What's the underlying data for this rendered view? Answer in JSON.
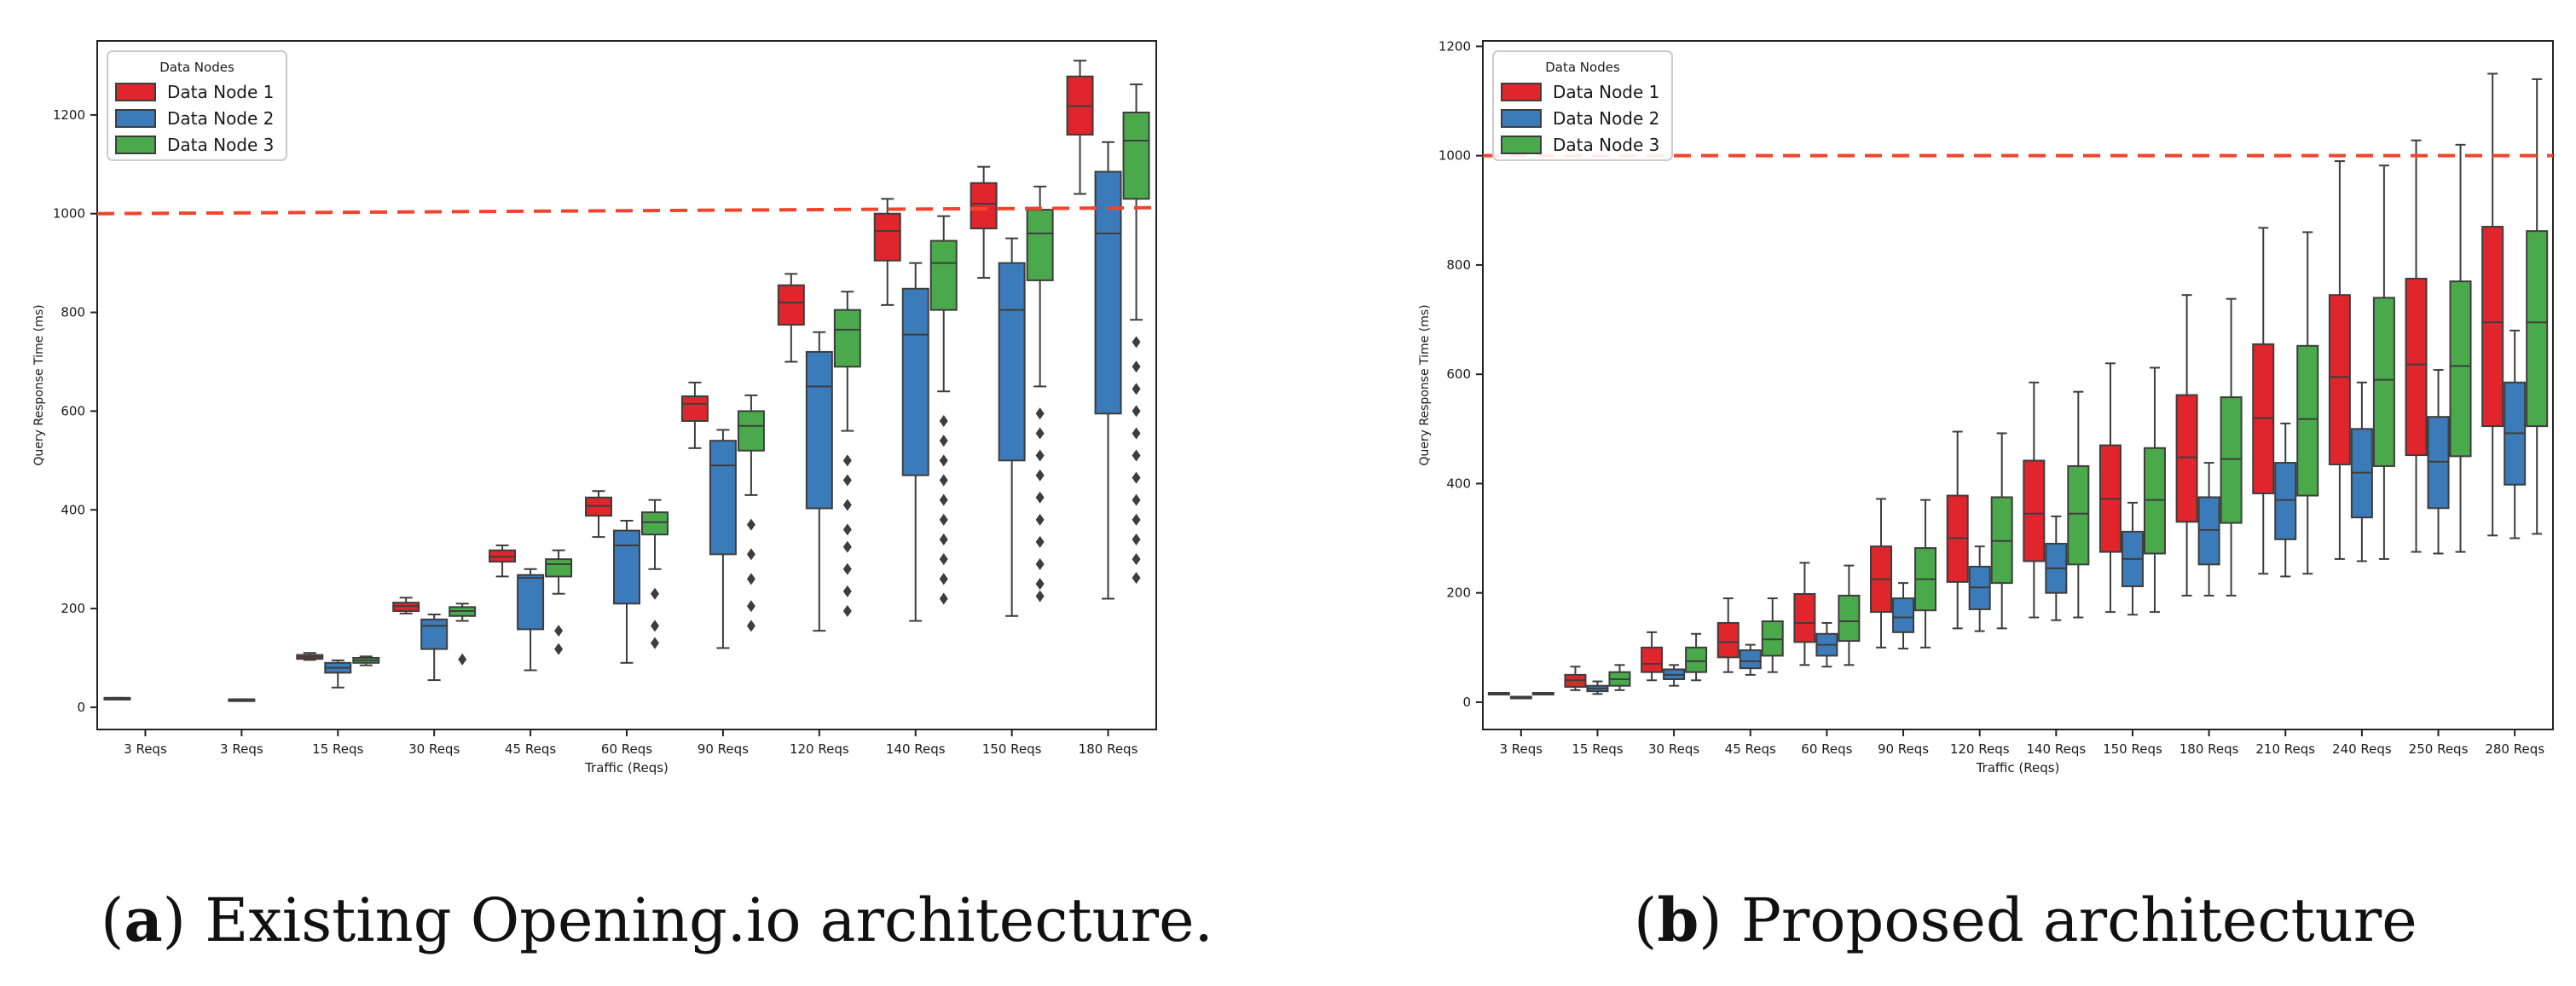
{
  "chart_data": [
    {
      "id": "a",
      "type": "box",
      "xlabel": "Traffic (Reqs)",
      "ylabel": "Query Response Time (ms)",
      "ylim": [
        -45,
        1350
      ],
      "yticks": [
        0,
        200,
        400,
        600,
        800,
        1000,
        1200
      ],
      "threshold": 1000,
      "threshold_end": 1012,
      "legend": {
        "title": "Data Nodes",
        "position": "top-left"
      },
      "series": [
        {
          "name": "Data Node 1",
          "color": "#e0262c"
        },
        {
          "name": "Data Node 2",
          "color": "#3c7bb9"
        },
        {
          "name": "Data Node 3",
          "color": "#4aaa4b"
        }
      ],
      "categories": [
        "3 Reqs",
        "3 Reqs",
        "15 Reqs",
        "30 Reqs",
        "45 Reqs",
        "60 Reqs",
        "90 Reqs",
        "120 Reqs",
        "140 Reqs",
        "150 Reqs",
        "180 Reqs"
      ],
      "boxes": [
        [
          [
            19,
            19,
            19,
            19,
            19,
            []
          ],
          null,
          null
        ],
        [
          null,
          [
            16,
            16,
            16,
            16,
            16,
            []
          ],
          null
        ],
        [
          [
            96,
            98,
            102,
            106,
            110,
            []
          ],
          [
            40,
            70,
            80,
            90,
            95,
            []
          ],
          [
            85,
            90,
            95,
            100,
            103,
            []
          ]
        ],
        [
          [
            190,
            195,
            205,
            212,
            222,
            []
          ],
          [
            55,
            118,
            165,
            178,
            188,
            []
          ],
          [
            175,
            185,
            195,
            203,
            210,
            [
              97
            ]
          ]
        ],
        [
          [
            265,
            295,
            305,
            318,
            328,
            []
          ],
          [
            75,
            158,
            262,
            268,
            280,
            []
          ],
          [
            230,
            265,
            290,
            300,
            318,
            [
              155,
              118
            ]
          ]
        ],
        [
          [
            345,
            388,
            408,
            425,
            438,
            []
          ],
          [
            90,
            210,
            328,
            358,
            378,
            []
          ],
          [
            280,
            350,
            375,
            395,
            420,
            [
              230,
              165,
              130
            ]
          ]
        ],
        [
          [
            525,
            580,
            615,
            630,
            658,
            []
          ],
          [
            120,
            310,
            490,
            540,
            562,
            []
          ],
          [
            430,
            520,
            570,
            600,
            632,
            [
              370,
              310,
              260,
              205,
              165
            ]
          ]
        ],
        [
          [
            700,
            775,
            820,
            855,
            878,
            []
          ],
          [
            155,
            403,
            650,
            720,
            760,
            []
          ],
          [
            560,
            690,
            765,
            805,
            842,
            [
              500,
              460,
              410,
              360,
              325,
              280,
              235,
              195
            ]
          ]
        ],
        [
          [
            815,
            905,
            965,
            1000,
            1030,
            []
          ],
          [
            175,
            470,
            755,
            848,
            900,
            []
          ],
          [
            640,
            805,
            900,
            945,
            995,
            [
              580,
              540,
              500,
              460,
              420,
              380,
              340,
              300,
              260,
              220
            ]
          ]
        ],
        [
          [
            870,
            970,
            1020,
            1062,
            1095,
            []
          ],
          [
            185,
            500,
            805,
            900,
            950,
            []
          ],
          [
            650,
            865,
            960,
            1008,
            1055,
            [
              595,
              555,
              510,
              470,
              425,
              380,
              335,
              290,
              250,
              225
            ]
          ]
        ],
        [
          [
            1040,
            1160,
            1218,
            1278,
            1310,
            []
          ],
          [
            220,
            595,
            960,
            1085,
            1145,
            []
          ],
          [
            785,
            1030,
            1148,
            1205,
            1262,
            [
              740,
              690,
              645,
              600,
              555,
              510,
              465,
              420,
              380,
              340,
              300,
              262
            ]
          ]
        ]
      ]
    },
    {
      "id": "b",
      "type": "box",
      "xlabel": "Traffic (Reqs)",
      "ylabel": "Query Response Time (ms)",
      "ylim": [
        -50,
        1210
      ],
      "yticks": [
        0,
        200,
        400,
        600,
        800,
        1000,
        1200
      ],
      "threshold": 1000,
      "threshold_end": 1000,
      "legend": {
        "title": "Data Nodes",
        "position": "top-left"
      },
      "series": [
        {
          "name": "Data Node 1",
          "color": "#e0262c"
        },
        {
          "name": "Data Node 2",
          "color": "#3c7bb9"
        },
        {
          "name": "Data Node 3",
          "color": "#4aaa4b"
        }
      ],
      "categories": [
        "3 Reqs",
        "15 Reqs",
        "30 Reqs",
        "45 Reqs",
        "60 Reqs",
        "90 Reqs",
        "120 Reqs",
        "140 Reqs",
        "150 Reqs",
        "180 Reqs",
        "210 Reqs",
        "240 Reqs",
        "250 Reqs",
        "280 Reqs"
      ],
      "boxes": [
        [
          [
            17,
            17,
            17,
            17,
            17,
            []
          ],
          [
            10,
            10,
            10,
            10,
            10,
            []
          ],
          [
            17,
            17,
            17,
            17,
            17,
            []
          ]
        ],
        [
          [
            22,
            28,
            40,
            50,
            65,
            []
          ],
          [
            15,
            20,
            25,
            30,
            38,
            []
          ],
          [
            22,
            30,
            42,
            55,
            68,
            []
          ]
        ],
        [
          [
            40,
            55,
            70,
            100,
            128,
            []
          ],
          [
            30,
            42,
            50,
            60,
            68,
            []
          ],
          [
            40,
            55,
            75,
            100,
            125,
            []
          ]
        ],
        [
          [
            55,
            82,
            110,
            145,
            190,
            []
          ],
          [
            50,
            62,
            75,
            95,
            105,
            []
          ],
          [
            55,
            85,
            115,
            148,
            190,
            []
          ]
        ],
        [
          [
            68,
            110,
            145,
            198,
            255,
            []
          ],
          [
            65,
            85,
            105,
            125,
            145,
            []
          ],
          [
            68,
            112,
            148,
            195,
            250,
            []
          ]
        ],
        [
          [
            100,
            165,
            225,
            285,
            372,
            []
          ],
          [
            98,
            128,
            155,
            190,
            218,
            []
          ],
          [
            100,
            168,
            225,
            282,
            370,
            []
          ]
        ],
        [
          [
            135,
            220,
            300,
            378,
            495,
            []
          ],
          [
            130,
            170,
            210,
            248,
            285,
            []
          ],
          [
            135,
            218,
            295,
            375,
            492,
            []
          ]
        ],
        [
          [
            155,
            258,
            345,
            442,
            585,
            []
          ],
          [
            150,
            200,
            245,
            290,
            340,
            []
          ],
          [
            155,
            252,
            345,
            432,
            568,
            []
          ]
        ],
        [
          [
            165,
            275,
            372,
            470,
            620,
            []
          ],
          [
            160,
            212,
            262,
            312,
            365,
            []
          ],
          [
            165,
            272,
            370,
            465,
            612,
            []
          ]
        ],
        [
          [
            195,
            330,
            448,
            562,
            745,
            []
          ],
          [
            195,
            252,
            315,
            375,
            438,
            []
          ],
          [
            195,
            328,
            445,
            558,
            738,
            []
          ]
        ],
        [
          [
            235,
            382,
            520,
            655,
            868,
            []
          ],
          [
            230,
            298,
            370,
            438,
            510,
            []
          ],
          [
            235,
            378,
            518,
            652,
            860,
            []
          ]
        ],
        [
          [
            262,
            435,
            595,
            745,
            990,
            []
          ],
          [
            258,
            338,
            420,
            500,
            585,
            []
          ],
          [
            262,
            432,
            590,
            740,
            982,
            []
          ]
        ],
        [
          [
            275,
            452,
            618,
            775,
            1028,
            []
          ],
          [
            272,
            355,
            440,
            522,
            608,
            []
          ],
          [
            275,
            450,
            615,
            770,
            1020,
            []
          ]
        ],
        [
          [
            305,
            505,
            695,
            870,
            1150,
            []
          ],
          [
            300,
            398,
            492,
            585,
            680,
            []
          ],
          [
            308,
            505,
            695,
            862,
            1140,
            []
          ]
        ]
      ]
    }
  ],
  "captions": {
    "a": {
      "letter": "a",
      "text": "Existing Opening.io architecture."
    },
    "b": {
      "letter": "b",
      "text": "Proposed architecture"
    }
  }
}
